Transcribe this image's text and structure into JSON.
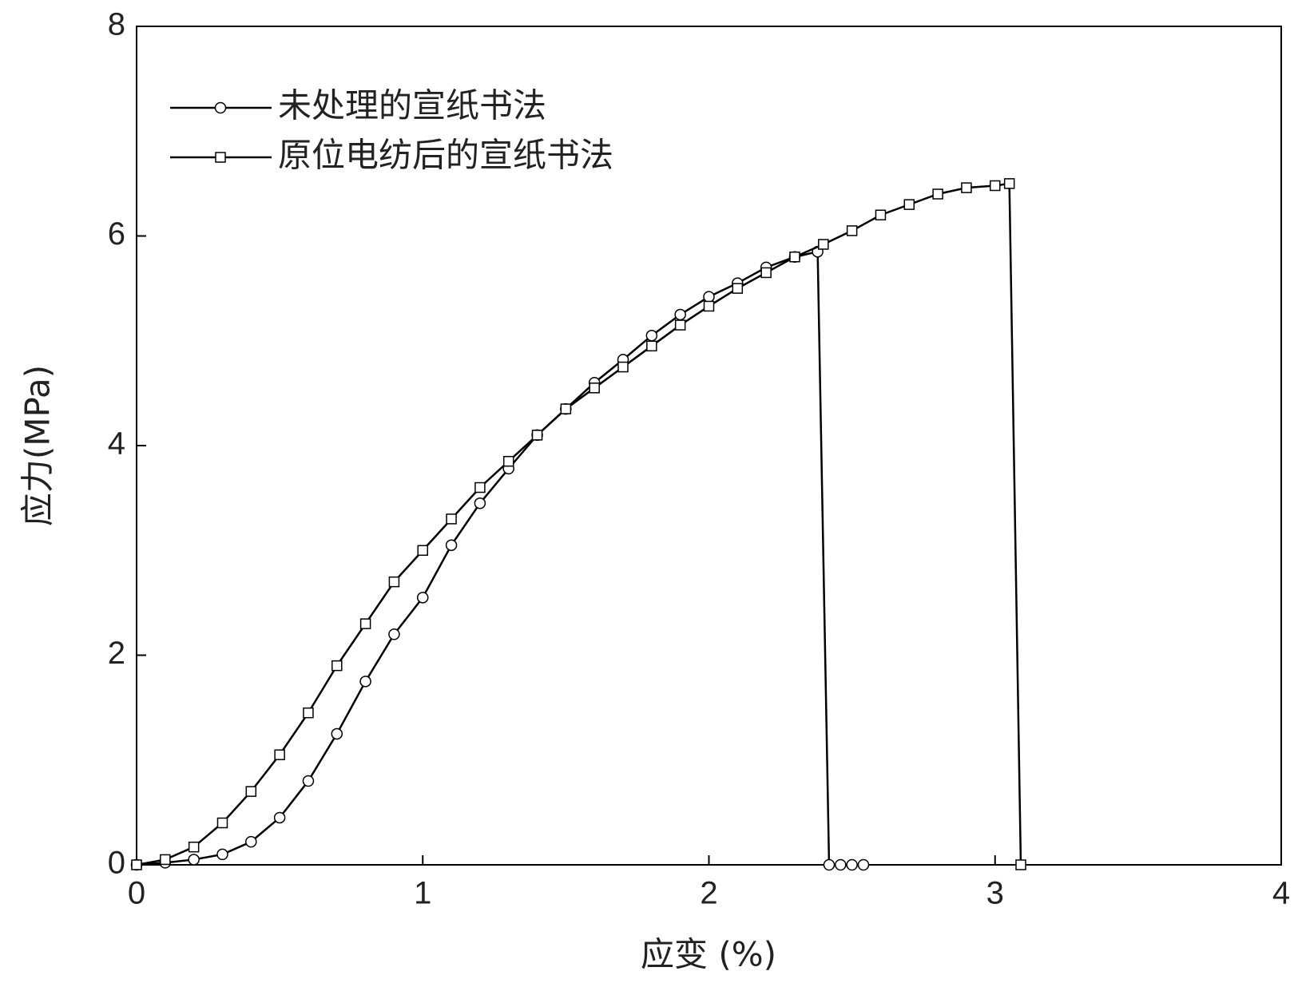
{
  "chart_data": {
    "type": "line",
    "xlabel": "应变 (%)",
    "ylabel": "应力(MPa)",
    "xlim": [
      0,
      4
    ],
    "xticks": [
      0,
      1,
      2,
      3,
      4
    ],
    "ylim": [
      0,
      8
    ],
    "yticks": [
      0,
      2,
      4,
      6,
      8
    ],
    "legend": "upper left",
    "series": [
      {
        "name": "未处理的宣纸书法",
        "color": "#000000",
        "marker": "circle",
        "x": [
          0,
          0.1,
          0.2,
          0.3,
          0.4,
          0.5,
          0.6,
          0.7,
          0.8,
          0.9,
          1.0,
          1.1,
          1.2,
          1.3,
          1.4,
          1.5,
          1.6,
          1.7,
          1.8,
          1.9,
          2.0,
          2.1,
          2.2,
          2.3,
          2.38,
          2.42,
          2.46,
          2.5,
          2.54
        ],
        "values": [
          0,
          0.02,
          0.05,
          0.1,
          0.22,
          0.45,
          0.8,
          1.25,
          1.75,
          2.2,
          2.55,
          3.05,
          3.45,
          3.78,
          4.1,
          4.35,
          4.6,
          4.82,
          5.05,
          5.25,
          5.42,
          5.55,
          5.7,
          5.8,
          5.85,
          0,
          0,
          0,
          0
        ]
      },
      {
        "name": "原位电纺后的宣纸书法",
        "color": "#000000",
        "marker": "square",
        "x": [
          0,
          0.1,
          0.2,
          0.3,
          0.4,
          0.5,
          0.6,
          0.7,
          0.8,
          0.9,
          1.0,
          1.1,
          1.2,
          1.3,
          1.4,
          1.5,
          1.6,
          1.7,
          1.8,
          1.9,
          2.0,
          2.1,
          2.2,
          2.3,
          2.4,
          2.5,
          2.6,
          2.7,
          2.8,
          2.9,
          3.0,
          3.05,
          3.09
        ],
        "values": [
          0,
          0.05,
          0.17,
          0.4,
          0.7,
          1.05,
          1.45,
          1.9,
          2.3,
          2.7,
          3.0,
          3.3,
          3.6,
          3.85,
          4.1,
          4.35,
          4.55,
          4.75,
          4.95,
          5.15,
          5.33,
          5.5,
          5.65,
          5.8,
          5.92,
          6.05,
          6.2,
          6.3,
          6.4,
          6.46,
          6.48,
          6.5,
          0
        ]
      }
    ]
  }
}
